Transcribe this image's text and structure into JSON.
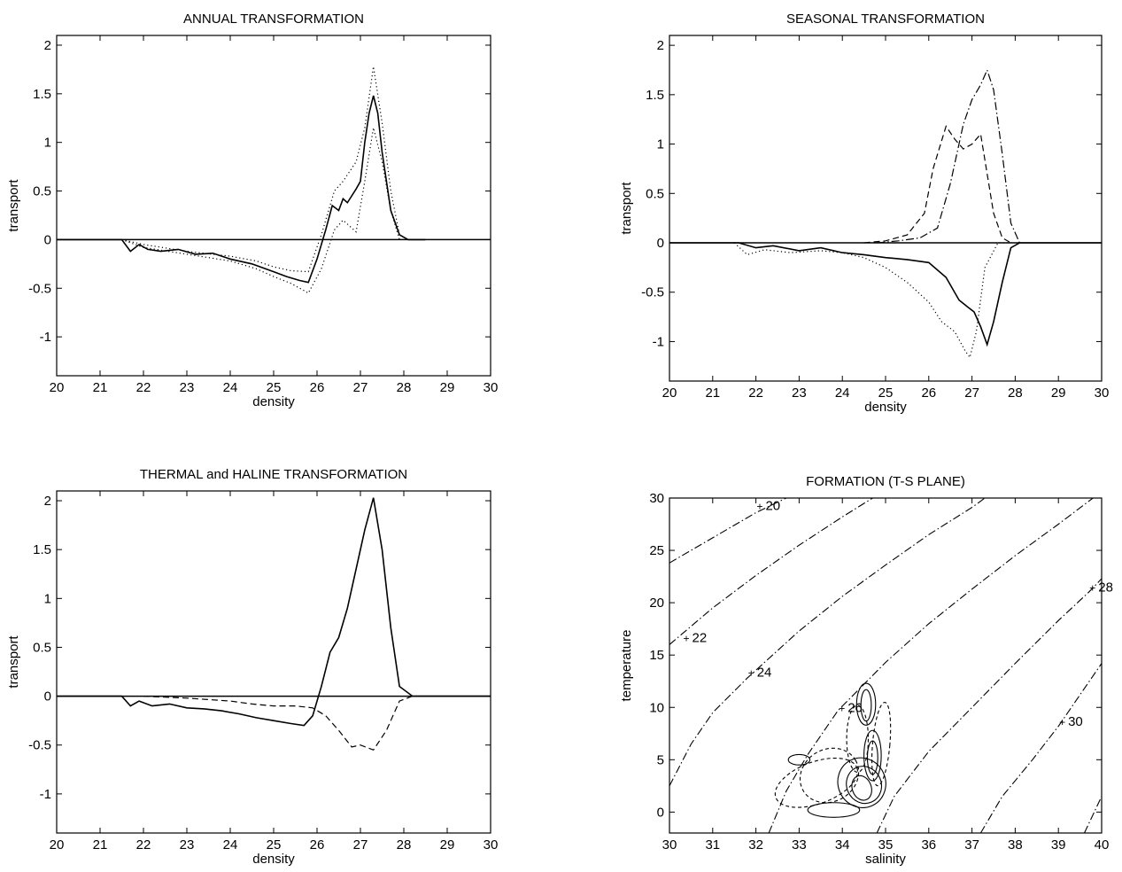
{
  "chart_data": [
    {
      "id": "annual",
      "type": "line",
      "title": "ANNUAL TRANSFORMATION",
      "xlabel": "density",
      "ylabel": "transport",
      "xlim": [
        20,
        30
      ],
      "ylim": [
        -1.4,
        2.1
      ],
      "xticks": [
        "20",
        "21",
        "22",
        "23",
        "24",
        "25",
        "26",
        "27",
        "28",
        "29",
        "30"
      ],
      "yticks": [
        "2",
        "1.5",
        "1",
        "0.5",
        "0",
        "-0.5",
        "-1"
      ],
      "ytick_values": [
        2,
        1.5,
        1,
        0.5,
        0,
        -0.5,
        -1
      ],
      "zero_line": true,
      "series": [
        {
          "style": "solid",
          "x": [
            20,
            21.5,
            21.7,
            21.9,
            22.1,
            22.4,
            22.8,
            23.2,
            23.6,
            24,
            24.5,
            25,
            25.3,
            25.6,
            25.8,
            26,
            26.2,
            26.35,
            26.5,
            26.6,
            26.7,
            26.8,
            26.9,
            27,
            27.1,
            27.2,
            27.3,
            27.4,
            27.5,
            27.7,
            27.9,
            28.1,
            28.5
          ],
          "y": [
            0,
            0,
            -0.12,
            -0.05,
            -0.1,
            -0.12,
            -0.1,
            -0.15,
            -0.14,
            -0.2,
            -0.25,
            -0.33,
            -0.38,
            -0.42,
            -0.44,
            -0.2,
            0.1,
            0.35,
            0.3,
            0.42,
            0.38,
            0.45,
            0.52,
            0.6,
            1.0,
            1.3,
            1.48,
            1.3,
            0.9,
            0.3,
            0.05,
            0,
            0
          ]
        },
        {
          "style": "dotted",
          "x": [
            21.5,
            22,
            23,
            24,
            24.6,
            25,
            25.4,
            25.8,
            26.1,
            26.4,
            26.6,
            26.9,
            27.1,
            27.3,
            27.5,
            27.7,
            27.9
          ],
          "y": [
            0,
            -0.05,
            -0.12,
            -0.17,
            -0.22,
            -0.28,
            -0.32,
            -0.33,
            0.05,
            0.5,
            0.6,
            0.8,
            1.15,
            1.78,
            1.2,
            0.5,
            0.05
          ]
        },
        {
          "style": "dotted",
          "x": [
            21.5,
            22,
            23,
            24,
            24.6,
            25,
            25.4,
            25.8,
            26.1,
            26.4,
            26.6,
            26.9,
            27.1,
            27.3,
            27.5,
            27.7,
            27.9
          ],
          "y": [
            0,
            -0.08,
            -0.15,
            -0.22,
            -0.3,
            -0.38,
            -0.45,
            -0.55,
            -0.3,
            0.1,
            0.2,
            0.08,
            0.6,
            1.15,
            0.8,
            0.3,
            0
          ]
        }
      ]
    },
    {
      "id": "seasonal",
      "type": "line",
      "title": "SEASONAL TRANSFORMATION",
      "xlabel": "density",
      "ylabel": "transport",
      "xlim": [
        20,
        30
      ],
      "ylim": [
        -1.4,
        2.1
      ],
      "xticks": [
        "20",
        "21",
        "22",
        "23",
        "24",
        "25",
        "26",
        "27",
        "28",
        "29",
        "30"
      ],
      "yticks": [
        "2",
        "1.5",
        "1",
        "0.5",
        "0",
        "-0.5",
        "-1"
      ],
      "ytick_values": [
        2,
        1.5,
        1,
        0.5,
        0,
        -0.5,
        -1
      ],
      "zero_line": true,
      "series": [
        {
          "style": "solid",
          "x": [
            20,
            21.6,
            22,
            22.4,
            23,
            23.5,
            24,
            24.5,
            25,
            25.5,
            26,
            26.4,
            26.7,
            26.9,
            27.05,
            27.2,
            27.35,
            27.5,
            27.7,
            27.9,
            28.1,
            30
          ],
          "y": [
            0,
            0,
            -0.05,
            -0.03,
            -0.08,
            -0.05,
            -0.1,
            -0.12,
            -0.15,
            -0.17,
            -0.2,
            -0.35,
            -0.58,
            -0.65,
            -0.7,
            -0.85,
            -1.03,
            -0.8,
            -0.4,
            -0.05,
            0,
            0
          ]
        },
        {
          "style": "dotted",
          "x": [
            21.5,
            21.8,
            22.2,
            22.8,
            23.5,
            24,
            24.5,
            25,
            25.5,
            26,
            26.3,
            26.6,
            26.85,
            26.95,
            27.1,
            27.3,
            27.6,
            27.9
          ],
          "y": [
            0,
            -0.12,
            -0.07,
            -0.1,
            -0.08,
            -0.1,
            -0.15,
            -0.25,
            -0.4,
            -0.6,
            -0.8,
            -0.9,
            -1.1,
            -1.16,
            -0.9,
            -0.25,
            0,
            0
          ]
        },
        {
          "style": "dashed",
          "x": [
            24.5,
            25,
            25.5,
            25.9,
            26.1,
            26.4,
            26.6,
            26.8,
            27.0,
            27.2,
            27.35,
            27.5,
            27.7,
            27.9
          ],
          "y": [
            0,
            0.02,
            0.08,
            0.3,
            0.75,
            1.18,
            1.05,
            0.95,
            1.0,
            1.1,
            0.7,
            0.3,
            0.05,
            0
          ]
        },
        {
          "style": "dashdot",
          "x": [
            24.8,
            25.3,
            25.8,
            26.2,
            26.5,
            26.8,
            27.0,
            27.2,
            27.35,
            27.5,
            27.7,
            27.9,
            28.1
          ],
          "y": [
            0,
            0.02,
            0.05,
            0.15,
            0.6,
            1.2,
            1.45,
            1.6,
            1.75,
            1.55,
            0.9,
            0.2,
            0
          ]
        }
      ]
    },
    {
      "id": "thermal-haline",
      "type": "line",
      "title": "THERMAL and HALINE TRANSFORMATION",
      "xlabel": "density",
      "ylabel": "transport",
      "xlim": [
        20,
        30
      ],
      "ylim": [
        -1.4,
        2.1
      ],
      "xticks": [
        "20",
        "21",
        "22",
        "23",
        "24",
        "25",
        "26",
        "27",
        "28",
        "29",
        "30"
      ],
      "yticks": [
        "2",
        "1.5",
        "1",
        "0.5",
        "0",
        "-0.5",
        "-1"
      ],
      "ytick_values": [
        2,
        1.5,
        1,
        0.5,
        0,
        -0.5,
        -1
      ],
      "zero_line": true,
      "series": [
        {
          "style": "solid",
          "x": [
            20,
            21.5,
            21.7,
            21.9,
            22.2,
            22.6,
            23,
            23.4,
            23.8,
            24.2,
            24.6,
            25,
            25.4,
            25.7,
            25.9,
            26.1,
            26.3,
            26.5,
            26.7,
            26.9,
            27.1,
            27.3,
            27.5,
            27.7,
            27.9,
            28.2,
            30
          ],
          "y": [
            0,
            0,
            -0.1,
            -0.05,
            -0.1,
            -0.08,
            -0.12,
            -0.13,
            -0.15,
            -0.18,
            -0.22,
            -0.25,
            -0.28,
            -0.3,
            -0.2,
            0.1,
            0.45,
            0.6,
            0.9,
            1.3,
            1.7,
            2.03,
            1.5,
            0.7,
            0.1,
            0,
            0
          ]
        },
        {
          "style": "dashed",
          "x": [
            22,
            23,
            24,
            24.5,
            25,
            25.5,
            25.9,
            26.2,
            26.5,
            26.8,
            27.0,
            27.3,
            27.6,
            27.9,
            28.2
          ],
          "y": [
            0,
            -0.02,
            -0.05,
            -0.08,
            -0.1,
            -0.1,
            -0.12,
            -0.2,
            -0.35,
            -0.52,
            -0.5,
            -0.55,
            -0.35,
            -0.05,
            0
          ]
        }
      ]
    },
    {
      "id": "formation-ts",
      "type": "contour",
      "title": "FORMATION (T-S PLANE)",
      "xlabel": "salinity",
      "ylabel": "temperature",
      "xlim": [
        30,
        40
      ],
      "ylim": [
        -2,
        30
      ],
      "xticks": [
        "30",
        "31",
        "32",
        "33",
        "34",
        "35",
        "36",
        "37",
        "38",
        "39",
        "40"
      ],
      "yticks": [
        "30",
        "25",
        "20",
        "15",
        "10",
        "5",
        "0"
      ],
      "ytick_values": [
        30,
        25,
        20,
        15,
        10,
        5,
        0
      ],
      "isopycnal_labels": [
        "20",
        "22",
        "24",
        "26",
        "28",
        "30"
      ],
      "isopycnals": [
        {
          "label": "20",
          "points": [
            [
              30,
              23.8
            ],
            [
              31,
              26.2
            ],
            [
              32,
              28.6
            ],
            [
              32.7,
              30
            ]
          ],
          "label_at": [
            32.1,
            29.2
          ]
        },
        {
          "label": "22",
          "points": [
            [
              30,
              16
            ],
            [
              31,
              19.5
            ],
            [
              32,
              22.6
            ],
            [
              33,
              25.5
            ],
            [
              34,
              28.2
            ],
            [
              34.7,
              30
            ]
          ],
          "label_at": [
            30.4,
            16.6
          ]
        },
        {
          "label": "24",
          "points": [
            [
              30,
              2.5
            ],
            [
              30.5,
              6.5
            ],
            [
              31,
              9.5
            ],
            [
              31.8,
              12.8
            ],
            [
              33,
              17.3
            ],
            [
              34,
              20.6
            ],
            [
              35,
              23.6
            ],
            [
              36,
              26.5
            ],
            [
              37,
              29.1
            ],
            [
              37.3,
              30
            ]
          ],
          "label_at": [
            31.9,
            13.3
          ]
        },
        {
          "label": "26",
          "points": [
            [
              32.3,
              -2
            ],
            [
              32.7,
              2
            ],
            [
              33.2,
              5.5
            ],
            [
              33.9,
              9.7
            ],
            [
              35,
              14.3
            ],
            [
              36,
              18
            ],
            [
              37,
              21.3
            ],
            [
              38,
              24.5
            ],
            [
              39,
              27.5
            ],
            [
              39.8,
              30
            ]
          ],
          "label_at": [
            34.0,
            9.9
          ]
        },
        {
          "label": "28",
          "points": [
            [
              34.8,
              -2
            ],
            [
              35.2,
              1.5
            ],
            [
              36,
              5.8
            ],
            [
              37,
              10
            ],
            [
              38,
              14.2
            ],
            [
              39,
              18.3
            ],
            [
              39.7,
              21
            ],
            [
              40,
              22.3
            ]
          ],
          "label_at": [
            39.8,
            21.4
          ]
        },
        {
          "label": "30",
          "points": [
            [
              37.2,
              -2
            ],
            [
              37.7,
              1.5
            ],
            [
              38.4,
              5
            ],
            [
              39,
              8.2
            ],
            [
              40,
              14.2
            ]
          ],
          "label_at": [
            39.1,
            8.6
          ]
        },
        {
          "label": "",
          "points": [
            [
              39.6,
              -2
            ],
            [
              40,
              1.5
            ]
          ],
          "label_at": null
        }
      ]
    }
  ]
}
